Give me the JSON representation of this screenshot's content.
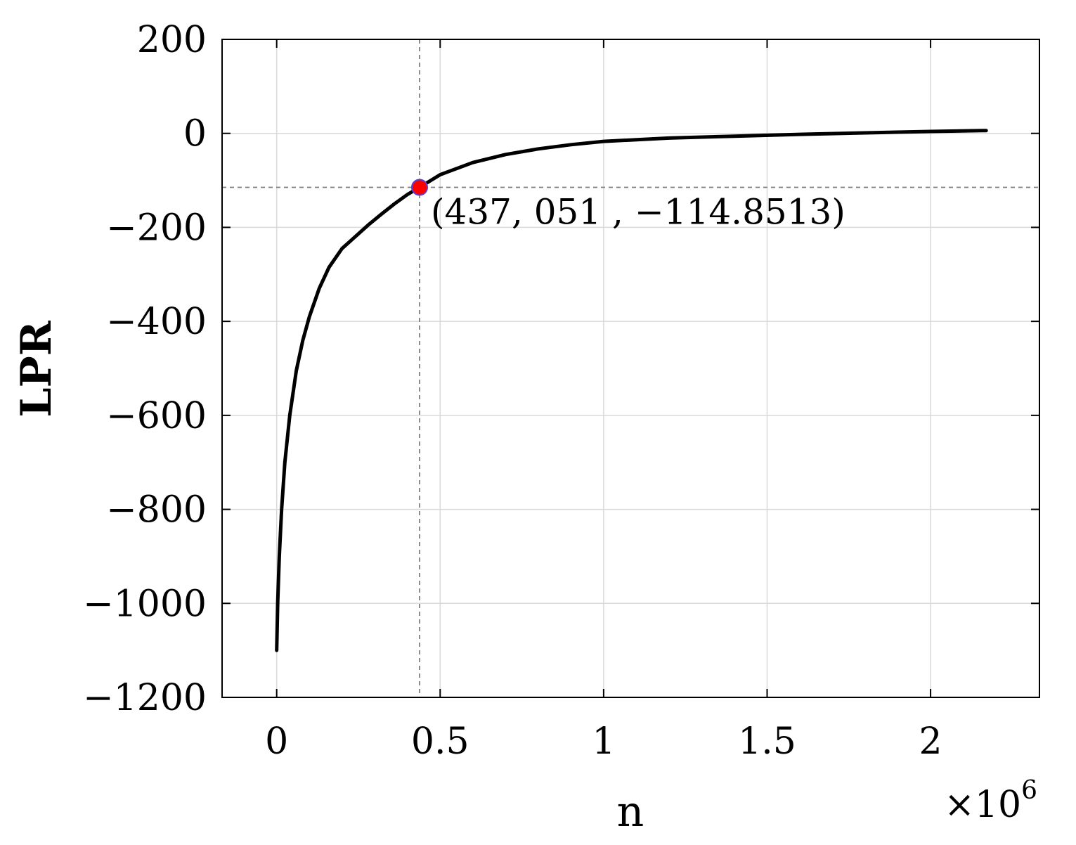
{
  "chart_data": {
    "type": "line",
    "xlabel": "n",
    "ylabel": "LPR",
    "x_multiplier_label": "×10",
    "x_multiplier_exponent": "6",
    "xlim": [
      -0.167,
      2.333
    ],
    "ylim": [
      -1200,
      200
    ],
    "xticks": [
      {
        "value": 0,
        "label": "0"
      },
      {
        "value": 0.5,
        "label": "0.5"
      },
      {
        "value": 1,
        "label": "1"
      },
      {
        "value": 1.5,
        "label": "1.5"
      },
      {
        "value": 2,
        "label": "2"
      }
    ],
    "yticks": [
      {
        "value": 200,
        "label": "200"
      },
      {
        "value": 0,
        "label": "0"
      },
      {
        "value": -200,
        "label": "−200"
      },
      {
        "value": -400,
        "label": "−400"
      },
      {
        "value": -600,
        "label": "−600"
      },
      {
        "value": -800,
        "label": "−800"
      },
      {
        "value": -1000,
        "label": "−1000"
      },
      {
        "value": -1200,
        "label": "−1200"
      }
    ],
    "grid": true,
    "series": [
      {
        "color": "#000000",
        "x": [
          0.0,
          0.003,
          0.008,
          0.015,
          0.025,
          0.04,
          0.06,
          0.08,
          0.1,
          0.13,
          0.16,
          0.2,
          0.24,
          0.28,
          0.32,
          0.36,
          0.4,
          0.437,
          0.5,
          0.6,
          0.7,
          0.8,
          0.9,
          1.0,
          1.2,
          1.4,
          1.6,
          1.8,
          2.0,
          2.17
        ],
        "y": [
          -1100,
          -1000,
          -900,
          -800,
          -700,
          -600,
          -505,
          -440,
          -390,
          -330,
          -285,
          -245,
          -220,
          -195,
          -172,
          -150,
          -130,
          -114.8513,
          -88,
          -62,
          -45,
          -33,
          -24,
          -17,
          -10,
          -6,
          -2,
          1,
          4,
          6
        ]
      }
    ],
    "highlight": {
      "x": 0.437051,
      "y": -114.8513,
      "color": "#ff0000",
      "label": "(437, 051 , −114.8513)"
    }
  }
}
